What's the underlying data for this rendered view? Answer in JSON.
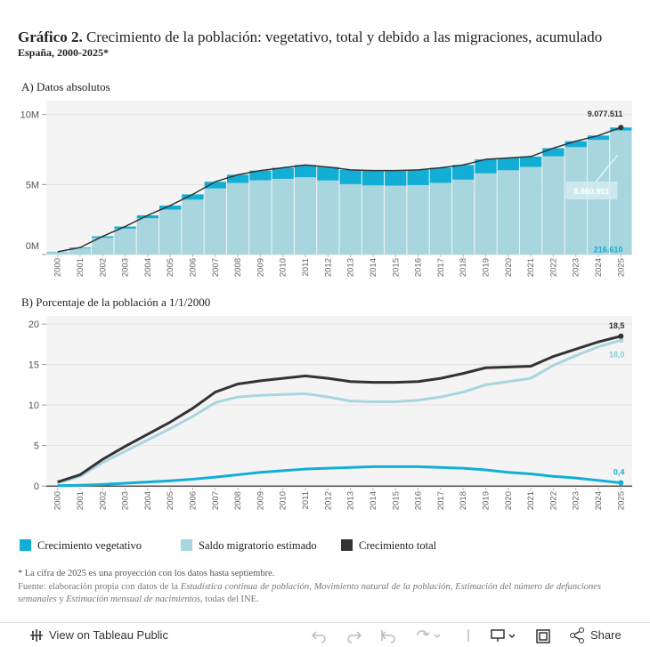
{
  "header": {
    "title_lead": "Gráfico 2.",
    "title": "Crecimiento de la población: vegetativo, total y debido a las migraciones, acumulado",
    "subtitle": "España, 2000-2025*"
  },
  "chart_data": [
    {
      "type": "bar",
      "title": "A) Datos absolutos",
      "stacked": true,
      "grid": true,
      "categories": [
        "2000",
        "2001",
        "2002",
        "2003",
        "2004",
        "2005",
        "2006",
        "2007",
        "2008",
        "2009",
        "2010",
        "2011",
        "2012",
        "2013",
        "2014",
        "2015",
        "2016",
        "2017",
        "2018",
        "2019",
        "2020",
        "2021",
        "2022",
        "2023",
        "2024",
        "2025"
      ],
      "ylim": [
        0,
        11000000
      ],
      "yticks": [
        {
          "value": 0,
          "label": "0M"
        },
        {
          "value": 5000000,
          "label": "5M"
        },
        {
          "value": 10000000,
          "label": "10M"
        }
      ],
      "series": [
        {
          "name": "Crecimiento vegetativo",
          "type": "bar",
          "color": "#13aed6",
          "values": [
            20000,
            50000,
            100000,
            150000,
            210000,
            290000,
            380000,
            480000,
            590000,
            690000,
            790000,
            880000,
            960000,
            1020000,
            1060000,
            1080000,
            1090000,
            1080000,
            1050000,
            1000000,
            880000,
            740000,
            580000,
            430000,
            310000,
            216610
          ],
          "value_labels": [
            null,
            null,
            null,
            null,
            null,
            null,
            null,
            null,
            null,
            null,
            null,
            null,
            null,
            null,
            null,
            null,
            null,
            null,
            null,
            null,
            null,
            null,
            null,
            null,
            null,
            "216.610"
          ]
        },
        {
          "name": "Saldo migratorio estimado",
          "type": "bar",
          "color": "#a8d6df",
          "values": [
            180000,
            450000,
            1200000,
            1850000,
            2590000,
            3210000,
            3920000,
            4720000,
            5110000,
            5310000,
            5410000,
            5520000,
            5290000,
            5030000,
            4940000,
            4920000,
            4960000,
            5120000,
            5350000,
            5800000,
            6020000,
            6260000,
            7020000,
            7670000,
            8190000,
            8860901
          ],
          "value_labels": [
            null,
            null,
            null,
            null,
            null,
            null,
            null,
            null,
            null,
            null,
            null,
            null,
            null,
            null,
            null,
            null,
            null,
            null,
            null,
            null,
            null,
            null,
            null,
            null,
            null,
            "8.860.901"
          ]
        },
        {
          "name": "Crecimiento total",
          "type": "line",
          "color": "#333333",
          "values": [
            200000,
            500000,
            1300000,
            2000000,
            2800000,
            3500000,
            4300000,
            5200000,
            5700000,
            6000000,
            6200000,
            6400000,
            6250000,
            6050000,
            6000000,
            6000000,
            6050000,
            6200000,
            6400000,
            6800000,
            6900000,
            7000000,
            7600000,
            8100000,
            8500000,
            9077511
          ],
          "value_labels": [
            null,
            null,
            null,
            null,
            null,
            null,
            null,
            null,
            null,
            null,
            null,
            null,
            null,
            null,
            null,
            null,
            null,
            null,
            null,
            null,
            null,
            null,
            null,
            null,
            null,
            "9.077.511"
          ]
        }
      ]
    },
    {
      "type": "line",
      "title": "B) Porcentaje de la población a 1/1/2000",
      "grid": true,
      "categories": [
        "2000",
        "2001",
        "2002",
        "2003",
        "2004",
        "2005",
        "2006",
        "2007",
        "2008",
        "2009",
        "2010",
        "2011",
        "2012",
        "2013",
        "2014",
        "2015",
        "2016",
        "2017",
        "2018",
        "2019",
        "2020",
        "2021",
        "2022",
        "2023",
        "2024",
        "2025"
      ],
      "ylim": [
        -0.2,
        21
      ],
      "yticks": [
        0,
        5,
        10,
        15,
        20
      ],
      "series": [
        {
          "name": "Crecimiento vegetativo",
          "color": "#13aed6",
          "values": [
            0.05,
            0.1,
            0.2,
            0.35,
            0.5,
            0.65,
            0.85,
            1.1,
            1.4,
            1.7,
            1.9,
            2.1,
            2.2,
            2.3,
            2.4,
            2.4,
            2.4,
            2.3,
            2.2,
            2.0,
            1.7,
            1.5,
            1.2,
            1.0,
            0.7,
            0.4
          ],
          "value_labels": [
            null,
            null,
            null,
            null,
            null,
            null,
            null,
            null,
            null,
            null,
            null,
            null,
            null,
            null,
            null,
            null,
            null,
            null,
            null,
            null,
            null,
            null,
            null,
            null,
            null,
            "0,4"
          ]
        },
        {
          "name": "Saldo migratorio estimado",
          "color": "#a8d6df",
          "values": [
            0.4,
            1.2,
            2.9,
            4.3,
            5.7,
            7.1,
            8.6,
            10.3,
            11.0,
            11.2,
            11.3,
            11.4,
            11.0,
            10.5,
            10.4,
            10.4,
            10.6,
            11.0,
            11.6,
            12.5,
            12.9,
            13.3,
            14.9,
            16.1,
            17.2,
            18.0
          ],
          "value_labels": [
            null,
            null,
            null,
            null,
            null,
            null,
            null,
            null,
            null,
            null,
            null,
            null,
            null,
            null,
            null,
            null,
            null,
            null,
            null,
            null,
            null,
            null,
            null,
            null,
            null,
            "18,0"
          ]
        },
        {
          "name": "Crecimiento total",
          "color": "#333333",
          "values": [
            0.5,
            1.4,
            3.3,
            4.9,
            6.4,
            7.9,
            9.6,
            11.6,
            12.6,
            13.0,
            13.3,
            13.6,
            13.3,
            12.9,
            12.8,
            12.8,
            12.9,
            13.3,
            13.9,
            14.6,
            14.7,
            14.8,
            16.0,
            16.9,
            17.8,
            18.5
          ],
          "value_labels": [
            null,
            null,
            null,
            null,
            null,
            null,
            null,
            null,
            null,
            null,
            null,
            null,
            null,
            null,
            null,
            null,
            null,
            null,
            null,
            null,
            null,
            null,
            null,
            null,
            null,
            "18,5"
          ]
        }
      ]
    }
  ],
  "footnote": "* La cifra de 2025 es una proyección con los datos hasta septiembre.",
  "source": [
    {
      "text": "Fuente: elaboración propia con datos de la ",
      "italic": false
    },
    {
      "text": "Estadística continua de población",
      "italic": true
    },
    {
      "text": ", ",
      "italic": false
    },
    {
      "text": "Movimiento natural de la población",
      "italic": true
    },
    {
      "text": ", ",
      "italic": false
    },
    {
      "text": "Estimación del número de defunciones semanales",
      "italic": true
    },
    {
      "text": " y ",
      "italic": false
    },
    {
      "text": "Estimación mensual de nacimientos",
      "italic": true
    },
    {
      "text": ", todas del INE.",
      "italic": false
    }
  ],
  "toolbar": {
    "view": "View on Tableau Public",
    "share": "Share"
  }
}
